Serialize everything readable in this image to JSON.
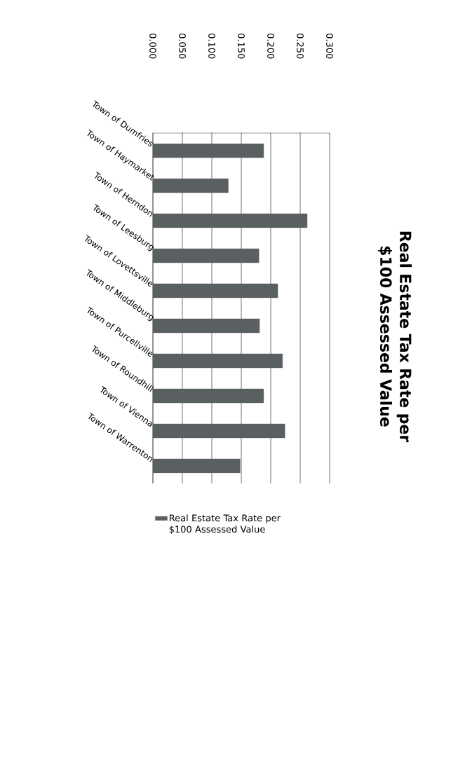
{
  "chart_data": {
    "type": "bar",
    "orientation": "horizontal",
    "title": "Real Estate Tax Rate per $100 Assessed Value",
    "categories": [
      "Town of Dumfries",
      "Town of Haymarket",
      "Town of Herndon",
      "Town of Leesburg",
      "Town of Lovettsville",
      "Town of Middleburg",
      "Town of Purcellville",
      "Town of Roundhill",
      "Town of Vienna",
      "Town of Warrenton"
    ],
    "series": [
      {
        "name": "Real Estate Tax Rate per $100 Assessed Value",
        "color": "#5a6062",
        "values": [
          0.188,
          0.128,
          0.262,
          0.18,
          0.212,
          0.181,
          0.22,
          0.188,
          0.224,
          0.148
        ]
      }
    ],
    "xlim": [
      0,
      0.3
    ],
    "xticks": [
      {
        "value": 0,
        "label": "0.000"
      },
      {
        "value": 0.05,
        "label": "0.050"
      },
      {
        "value": 0.1,
        "label": "0.100"
      },
      {
        "value": 0.15,
        "label": "0.150"
      },
      {
        "value": 0.2,
        "label": "0.200"
      },
      {
        "value": 0.25,
        "label": "0.250"
      },
      {
        "value": 0.3,
        "label": "0.300"
      }
    ],
    "grid": "x",
    "legend": "bottom"
  }
}
